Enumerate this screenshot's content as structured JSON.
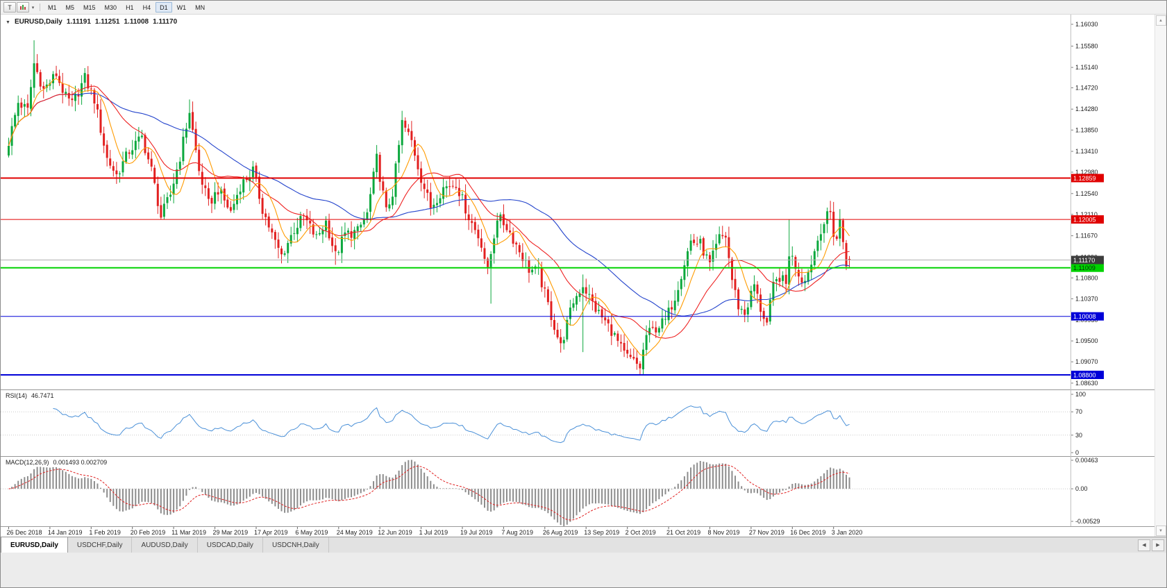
{
  "icons": {
    "collapse": "▼",
    "dropdown": "▾",
    "up": "▲",
    "down": "▼",
    "left": "◀",
    "right": "▶"
  },
  "toolbar": {
    "template_button": "T",
    "timeframes": [
      "M1",
      "M5",
      "M15",
      "M30",
      "H1",
      "H4",
      "D1",
      "W1",
      "MN"
    ],
    "active_timeframe": "D1"
  },
  "chart_header": {
    "title": "EURUSD,Daily",
    "open": "1.11191",
    "high": "1.11251",
    "low": "1.11008",
    "close": "1.11170"
  },
  "rsi_header": {
    "label": "RSI(14)",
    "value": "46.7471"
  },
  "macd_header": {
    "label": "MACD(12,26,9)",
    "value": "0.001493 0.002709"
  },
  "tabs": [
    {
      "label": "EURUSD,Daily",
      "active": true
    },
    {
      "label": "USDCHF,Daily",
      "active": false
    },
    {
      "label": "AUDUSD,Daily",
      "active": false
    },
    {
      "label": "USDCAD,Daily",
      "active": false
    },
    {
      "label": "USDCNH,Daily",
      "active": false
    }
  ],
  "chart_data": {
    "type": "candlestick",
    "symbol": "EURUSD",
    "timeframe": "Daily",
    "title": "EURUSD,Daily",
    "price_range": [
      1.085,
      1.1623
    ],
    "price_axis_labels": [
      "1.16030",
      "1.15580",
      "1.15140",
      "1.14720",
      "1.14280",
      "1.13850",
      "1.13410",
      "1.12980",
      "1.12540",
      "1.12110",
      "1.11670",
      "1.11230",
      "1.10800",
      "1.10370",
      "1.09930",
      "1.09500",
      "1.09070",
      "1.08630"
    ],
    "date_axis_labels": [
      "26 Dec 2018",
      "14 Jan 2019",
      "1 Feb 2019",
      "20 Feb 2019",
      "11 Mar 2019",
      "29 Mar 2019",
      "17 Apr 2019",
      "6 May 2019",
      "24 May 2019",
      "12 Jun 2019",
      "1 Jul 2019",
      "19 Jul 2019",
      "7 Aug 2019",
      "26 Aug 2019",
      "13 Sep 2019",
      "2 Oct 2019",
      "21 Oct 2019",
      "8 Nov 2019",
      "27 Nov 2019",
      "16 Dec 2019",
      "3 Jan 2020"
    ],
    "date_tick_interval": 13,
    "candle_count": 266,
    "close_anchors": [
      [
        0,
        1.136
      ],
      [
        3,
        1.1442
      ],
      [
        6,
        1.1425
      ],
      [
        8,
        1.1522
      ],
      [
        11,
        1.1468
      ],
      [
        15,
        1.15
      ],
      [
        18,
        1.1452
      ],
      [
        20,
        1.1438
      ],
      [
        24,
        1.1492
      ],
      [
        27,
        1.1448
      ],
      [
        31,
        1.1326
      ],
      [
        34,
        1.1292
      ],
      [
        38,
        1.1342
      ],
      [
        42,
        1.137
      ],
      [
        45,
        1.1302
      ],
      [
        48,
        1.1206
      ],
      [
        51,
        1.1252
      ],
      [
        54,
        1.133
      ],
      [
        57,
        1.1424
      ],
      [
        60,
        1.13
      ],
      [
        63,
        1.1232
      ],
      [
        66,
        1.1262
      ],
      [
        70,
        1.1216
      ],
      [
        73,
        1.127
      ],
      [
        77,
        1.1302
      ],
      [
        80,
        1.1222
      ],
      [
        84,
        1.1152
      ],
      [
        86,
        1.1126
      ],
      [
        90,
        1.118
      ],
      [
        93,
        1.1206
      ],
      [
        97,
        1.1162
      ],
      [
        100,
        1.1196
      ],
      [
        103,
        1.1126
      ],
      [
        106,
        1.117
      ],
      [
        110,
        1.1176
      ],
      [
        113,
        1.1212
      ],
      [
        116,
        1.1326
      ],
      [
        119,
        1.1216
      ],
      [
        121,
        1.1256
      ],
      [
        124,
        1.14
      ],
      [
        127,
        1.1362
      ],
      [
        130,
        1.1286
      ],
      [
        133,
        1.1226
      ],
      [
        137,
        1.1266
      ],
      [
        141,
        1.1276
      ],
      [
        145,
        1.1206
      ],
      [
        149,
        1.1152
      ],
      [
        151,
        1.1092
      ],
      [
        154,
        1.1206
      ],
      [
        157,
        1.1186
      ],
      [
        161,
        1.1136
      ],
      [
        164,
        1.1098
      ],
      [
        167,
        1.1092
      ],
      [
        171,
        1.1002
      ],
      [
        174,
        1.0938
      ],
      [
        178,
        1.1032
      ],
      [
        181,
        1.1066
      ],
      [
        185,
        1.1016
      ],
      [
        190,
        1.0972
      ],
      [
        194,
        1.0922
      ],
      [
        199,
        1.0896
      ],
      [
        201,
        1.0962
      ],
      [
        203,
        1.0972
      ],
      [
        207,
        1.0992
      ],
      [
        210,
        1.1042
      ],
      [
        213,
        1.1112
      ],
      [
        215,
        1.1156
      ],
      [
        218,
        1.115
      ],
      [
        221,
        1.1106
      ],
      [
        224,
        1.1162
      ],
      [
        226,
        1.1166
      ],
      [
        228,
        1.1076
      ],
      [
        230,
        1.1022
      ],
      [
        232,
        1.1006
      ],
      [
        235,
        1.1066
      ],
      [
        237,
        1.1016
      ],
      [
        239,
        1.0986
      ],
      [
        241,
        1.1062
      ],
      [
        243,
        1.1082
      ],
      [
        245,
        1.1066
      ],
      [
        246,
        1.1132
      ],
      [
        247,
        1.112
      ],
      [
        250,
        1.1076
      ],
      [
        252,
        1.1092
      ],
      [
        254,
        1.1136
      ],
      [
        256,
        1.1182
      ],
      [
        258,
        1.1206
      ],
      [
        259,
        1.1214
      ],
      [
        260,
        1.1172
      ],
      [
        261,
        1.1162
      ],
      [
        262,
        1.1196
      ],
      [
        263,
        1.1156
      ],
      [
        264,
        1.1112
      ],
      [
        265,
        1.1117
      ]
    ],
    "special_candles": [
      {
        "i": 8,
        "high": 1.157
      },
      {
        "i": 57,
        "high": 1.1448
      },
      {
        "i": 86,
        "low": 1.111
      },
      {
        "i": 103,
        "low": 1.1107
      },
      {
        "i": 124,
        "high": 1.1412
      },
      {
        "i": 152,
        "low": 1.1027
      },
      {
        "i": 174,
        "low": 1.0926
      },
      {
        "i": 181,
        "low": 1.0927,
        "high": 1.1087
      },
      {
        "i": 199,
        "low": 1.0879
      },
      {
        "i": 246,
        "high": 1.12
      },
      {
        "i": 259,
        "high": 1.1239
      }
    ],
    "last_candle": {
      "open": 1.11191,
      "high": 1.11251,
      "low": 1.11008,
      "close": 1.1117
    },
    "bid_price": 1.1117,
    "bid_label": "1.11170",
    "hlines": [
      {
        "price": 1.12859,
        "label": "1.12859",
        "color": "#e00000",
        "width": 2
      },
      {
        "price": 1.12005,
        "label": "1.12005",
        "color": "#e00000",
        "width": 1
      },
      {
        "price": 1.11009,
        "label": "1.11009",
        "color": "#00d200",
        "width": 2,
        "text_color": "#04350b"
      },
      {
        "price": 1.10008,
        "label": "1.10008",
        "color": "#0000d8",
        "width": 1
      },
      {
        "price": 1.088,
        "label": "1.08800",
        "color": "#0000d8",
        "width": 2
      }
    ],
    "colors": {
      "bull": "#0ca83e",
      "bear": "#e22020",
      "ma_slow": "#2444cc",
      "ma_mid": "#ee2222",
      "ma_fast": "#ff9b00",
      "rsi": "#4a90d8",
      "macd_hist": "#8c8c8c",
      "macd_signal": "#e02020",
      "bid_line": "#b0b0b0",
      "bid_label_bg": "#3d3d3d"
    },
    "ma_periods": [
      {
        "period": 50,
        "color_key": "ma_slow"
      },
      {
        "period": 21,
        "color_key": "ma_mid"
      },
      {
        "period": 8,
        "color_key": "ma_fast"
      }
    ],
    "rsi": {
      "period": 14,
      "levels": [
        100,
        70,
        30,
        0
      ],
      "level_labels": [
        "100",
        "70",
        "30",
        "0"
      ]
    },
    "macd": {
      "fast": 12,
      "slow": 26,
      "signal": 9,
      "range": [
        -0.00529,
        0.00463
      ],
      "axis_values": [
        0.00463,
        0,
        -0.00529
      ],
      "axis_labels": [
        "0.00463",
        "0.00",
        "-0.00529"
      ]
    }
  }
}
